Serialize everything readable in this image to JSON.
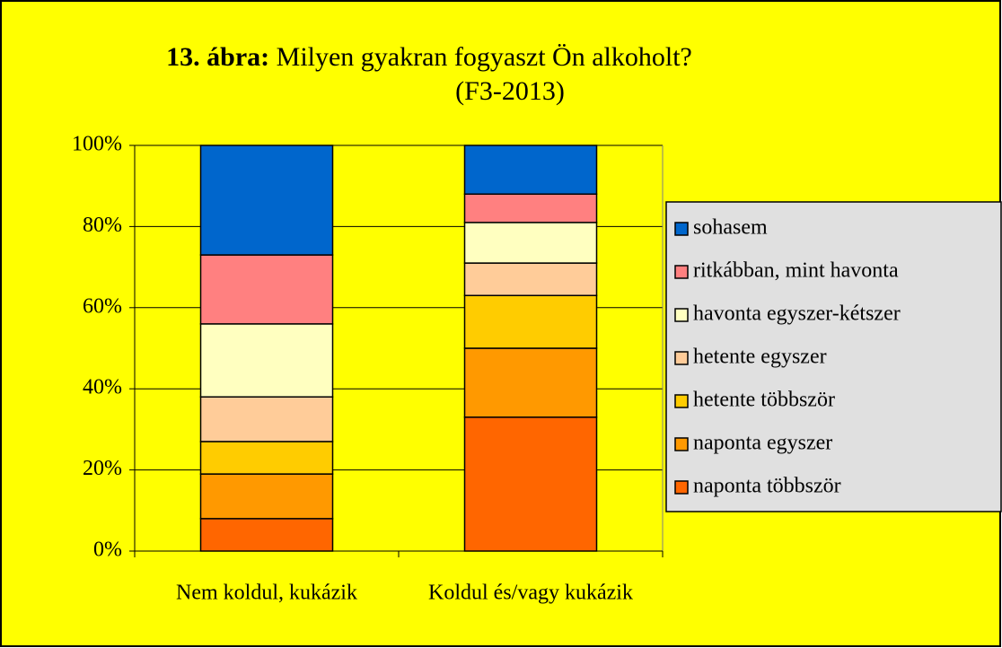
{
  "chart_data": {
    "type": "stacked_bar",
    "title_label": "13. ábra:",
    "title": "Milyen gyakran fogyaszt Ön alkoholt?",
    "subtitle": "(F3-2013)",
    "categories": [
      "Nem koldul, kukázik",
      "Koldul és/vagy kukázik"
    ],
    "series": [
      {
        "name": "naponta többször",
        "color": "#ff6600",
        "values": [
          8,
          33
        ]
      },
      {
        "name": "naponta egyszer",
        "color": "#ff9900",
        "values": [
          11,
          17
        ]
      },
      {
        "name": "hetente többször",
        "color": "#ffcc00",
        "values": [
          8,
          13
        ]
      },
      {
        "name": "hetente egyszer",
        "color": "#ffcc99",
        "values": [
          11,
          8
        ]
      },
      {
        "name": "havonta egyszer-kétszer",
        "color": "#ffffc0",
        "values": [
          18,
          10
        ]
      },
      {
        "name": "ritkábban, mint havonta",
        "color": "#ff8080",
        "values": [
          17,
          7
        ]
      },
      {
        "name": "sohasem",
        "color": "#0066cc",
        "values": [
          27,
          12
        ]
      }
    ],
    "ylim": [
      0,
      100
    ],
    "yticks": [
      {
        "value": 0,
        "label": "0%"
      },
      {
        "value": 20,
        "label": "20%"
      },
      {
        "value": 40,
        "label": "40%"
      },
      {
        "value": 60,
        "label": "60%"
      },
      {
        "value": 80,
        "label": "80%"
      },
      {
        "value": 100,
        "label": "100%"
      }
    ],
    "grid": true,
    "legend": "right"
  }
}
